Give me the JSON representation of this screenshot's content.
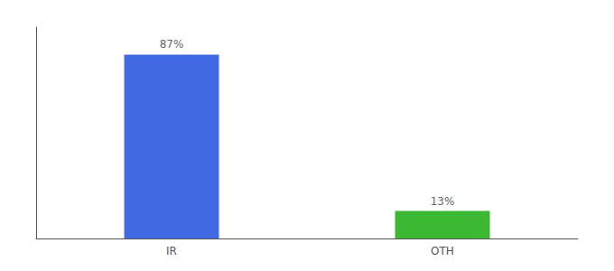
{
  "chart_data": {
    "type": "bar",
    "categories": [
      "IR",
      "OTH"
    ],
    "values": [
      87,
      13
    ],
    "value_labels": [
      "87%",
      "13%"
    ],
    "colors": [
      "#4169e1",
      "#3db832"
    ],
    "data_labels": true,
    "ylim": [
      0,
      100
    ],
    "tick_labels": "x",
    "grid": false
  }
}
